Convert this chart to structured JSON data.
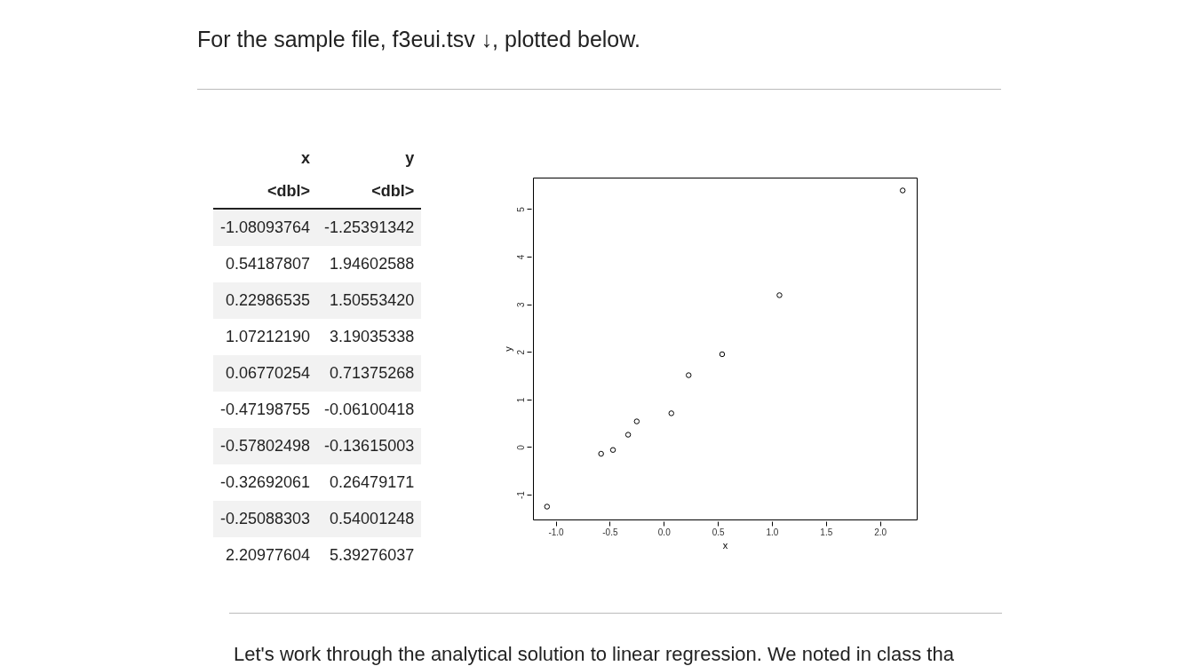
{
  "chart_data": [
    {
      "type": "other",
      "annotations": [
        "x",
        "y",
        "<dbl>",
        "<dbl>",
        "-1.08093764",
        "-1.25391342",
        "0.54187807",
        "1.94602588",
        "0.22986535",
        "1.50553420",
        "1.07212190",
        "3.19035338",
        "0.06770254",
        "0.71375268",
        "-0.47198755",
        "-0.06100418",
        "-0.57802498",
        "-0.13615003",
        "-0.32692061",
        "0.26479171",
        "-0.25088303",
        "0.54001248",
        "2.20977604",
        "5.39276037"
      ]
    },
    {
      "type": "scatter",
      "title": "For the sample file, f3eui.tsv ↓, plotted below.",
      "xlabel": "x",
      "ylabel": "y",
      "x": [
        -1.08,
        0.54,
        0.23,
        1.07,
        0.07,
        -0.47,
        -0.58,
        -0.33,
        -0.25,
        2.21
      ],
      "values": [
        -1.25,
        1.95,
        1.51,
        3.19,
        0.71,
        -0.06,
        -0.14,
        0.26,
        0.54,
        5.39
      ],
      "color": "#000000",
      "marker": "circle",
      "xlim": [
        -1.21,
        2.34
      ],
      "ylim": [
        -1.52,
        5.66
      ],
      "xticks": [
        {
          "value": -1,
          "label": "-1.0"
        },
        {
          "value": -0.5,
          "label": "-0.5"
        },
        {
          "value": 0,
          "label": "0.0"
        },
        {
          "value": 0.5,
          "label": "0.5"
        },
        {
          "value": 1,
          "label": "1.0"
        },
        {
          "value": 1.5,
          "label": "1.5"
        },
        {
          "value": 2,
          "label": "2.0"
        }
      ],
      "yticks": [
        -1,
        0,
        1,
        2,
        3,
        4,
        5
      ],
      "annotations": [
        "Let's work through the analytical solution to linear regression.  We noted in class tha"
      ]
    }
  ]
}
